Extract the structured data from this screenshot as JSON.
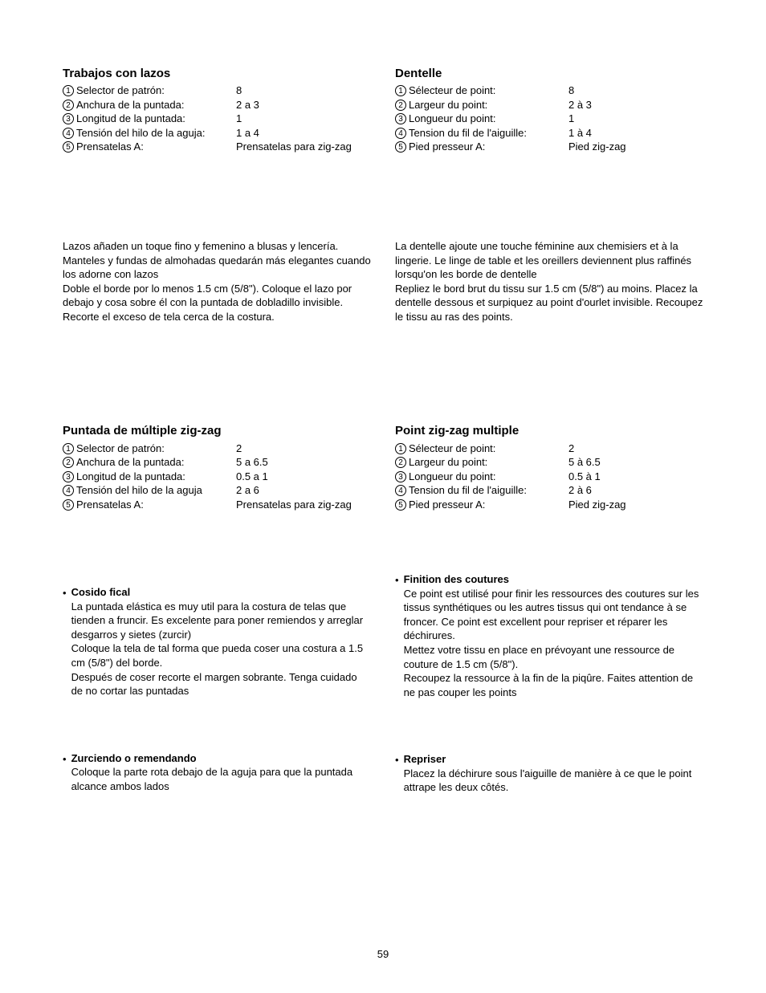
{
  "page_number": "59",
  "left": {
    "section1": {
      "title": "Trabajos con lazos",
      "settings": [
        {
          "num": "1",
          "label": "Selector de patrón:",
          "value": "8"
        },
        {
          "num": "2",
          "label": "Anchura de la puntada:",
          "value": "2 a 3"
        },
        {
          "num": "3",
          "label": "Longitud de la puntada:",
          "value": "1"
        },
        {
          "num": "4",
          "label": "Tensión del hilo de la aguja:",
          "value": "1 a 4"
        },
        {
          "num": "5",
          "label": "Prensatelas A:",
          "value": "Prensatelas para zig-zag"
        }
      ],
      "body": "Lazos añaden un toque fino y femenino a blusas y lencería. Manteles y fundas de almohadas quedarán más elegantes cuando los adorne con lazos\nDoble el borde por lo menos 1.5 cm (5/8\"). Coloque el lazo por debajo y cosa sobre él con la puntada de dobladillo invisible. Recorte el exceso de tela cerca de la costura."
    },
    "section2": {
      "title": "Puntada de múltiple zig-zag",
      "settings": [
        {
          "num": "1",
          "label": "Selector de patrón:",
          "value": "2"
        },
        {
          "num": "2",
          "label": "Anchura de la puntada:",
          "value": "5 a 6.5"
        },
        {
          "num": "3",
          "label": "Longitud de la puntada:",
          "value": "0.5 a 1"
        },
        {
          "num": "4",
          "label": "Tensión del hilo de la aguja",
          "value": "2 a 6"
        },
        {
          "num": "5",
          "label": "Prensatelas A:",
          "value": "Prensatelas para zig-zag"
        }
      ],
      "sub1": {
        "title": "Cosido fical",
        "body": "La puntada elástica es muy util para la costura de telas que tienden a fruncir. Es excelente para poner remiendos y arreglar desgarros y sietes (zurcir)\nColoque la tela de tal forma que pueda coser una costura a 1.5 cm (5/8\") del borde.\nDespués de coser recorte el margen sobrante. Tenga cuidado de no cortar las puntadas"
      },
      "sub2": {
        "title": "Zurciendo o remendando",
        "body": "Coloque la parte rota debajo de la aguja para que la puntada alcance ambos lados"
      }
    }
  },
  "right": {
    "section1": {
      "title": "Dentelle",
      "settings": [
        {
          "num": "1",
          "label": "Sélecteur de point:",
          "value": "8"
        },
        {
          "num": "2",
          "label": "Largeur du point:",
          "value": "2 à 3"
        },
        {
          "num": "3",
          "label": "Longueur du point:",
          "value": "1"
        },
        {
          "num": "4",
          "label": "Tension du fil de l'aiguille:",
          "value": "1 à 4"
        },
        {
          "num": "5",
          "label": "Pied presseur A:",
          "value": "Pied zig-zag"
        }
      ],
      "body": "La dentelle ajoute une touche féminine aux chemisiers et à la lingerie. Le linge de table et les oreillers deviennent plus raffinés lorsqu'on les borde de dentelle\nRepliez le bord brut du tissu sur 1.5 cm (5/8\") au moins. Placez la dentelle dessous et surpiquez au point d'ourlet invisible. Recoupez le tissu au ras des points."
    },
    "section2": {
      "title": "Point zig-zag multiple",
      "settings": [
        {
          "num": "1",
          "label": "Sélecteur de point:",
          "value": "2"
        },
        {
          "num": "2",
          "label": "Largeur du point:",
          "value": "5 à 6.5"
        },
        {
          "num": "3",
          "label": "Longueur du point:",
          "value": "0.5 à 1"
        },
        {
          "num": "4",
          "label": "Tension du fil de l'aiguille:",
          "value": "2 à 6"
        },
        {
          "num": "5",
          "label": "Pied presseur A:",
          "value": "Pied zig-zag"
        }
      ],
      "sub1": {
        "title": "Finition des coutures",
        "body": "Ce point est utilisé pour finir les ressources des coutures sur les tissus synthétiques ou les autres tissus qui ont tendance à se froncer. Ce point est excellent pour repriser et réparer les déchirures.\nMettez votre tissu en place en prévoyant une ressource de couture de 1.5 cm (5/8\").\nRecoupez la ressource à la fin de la piqûre. Faites attention de ne pas couper les points"
      },
      "sub2": {
        "title": "Repriser",
        "body": "Placez la déchirure sous l'aiguille de manière à ce que le point attrape les deux côtés."
      }
    }
  }
}
